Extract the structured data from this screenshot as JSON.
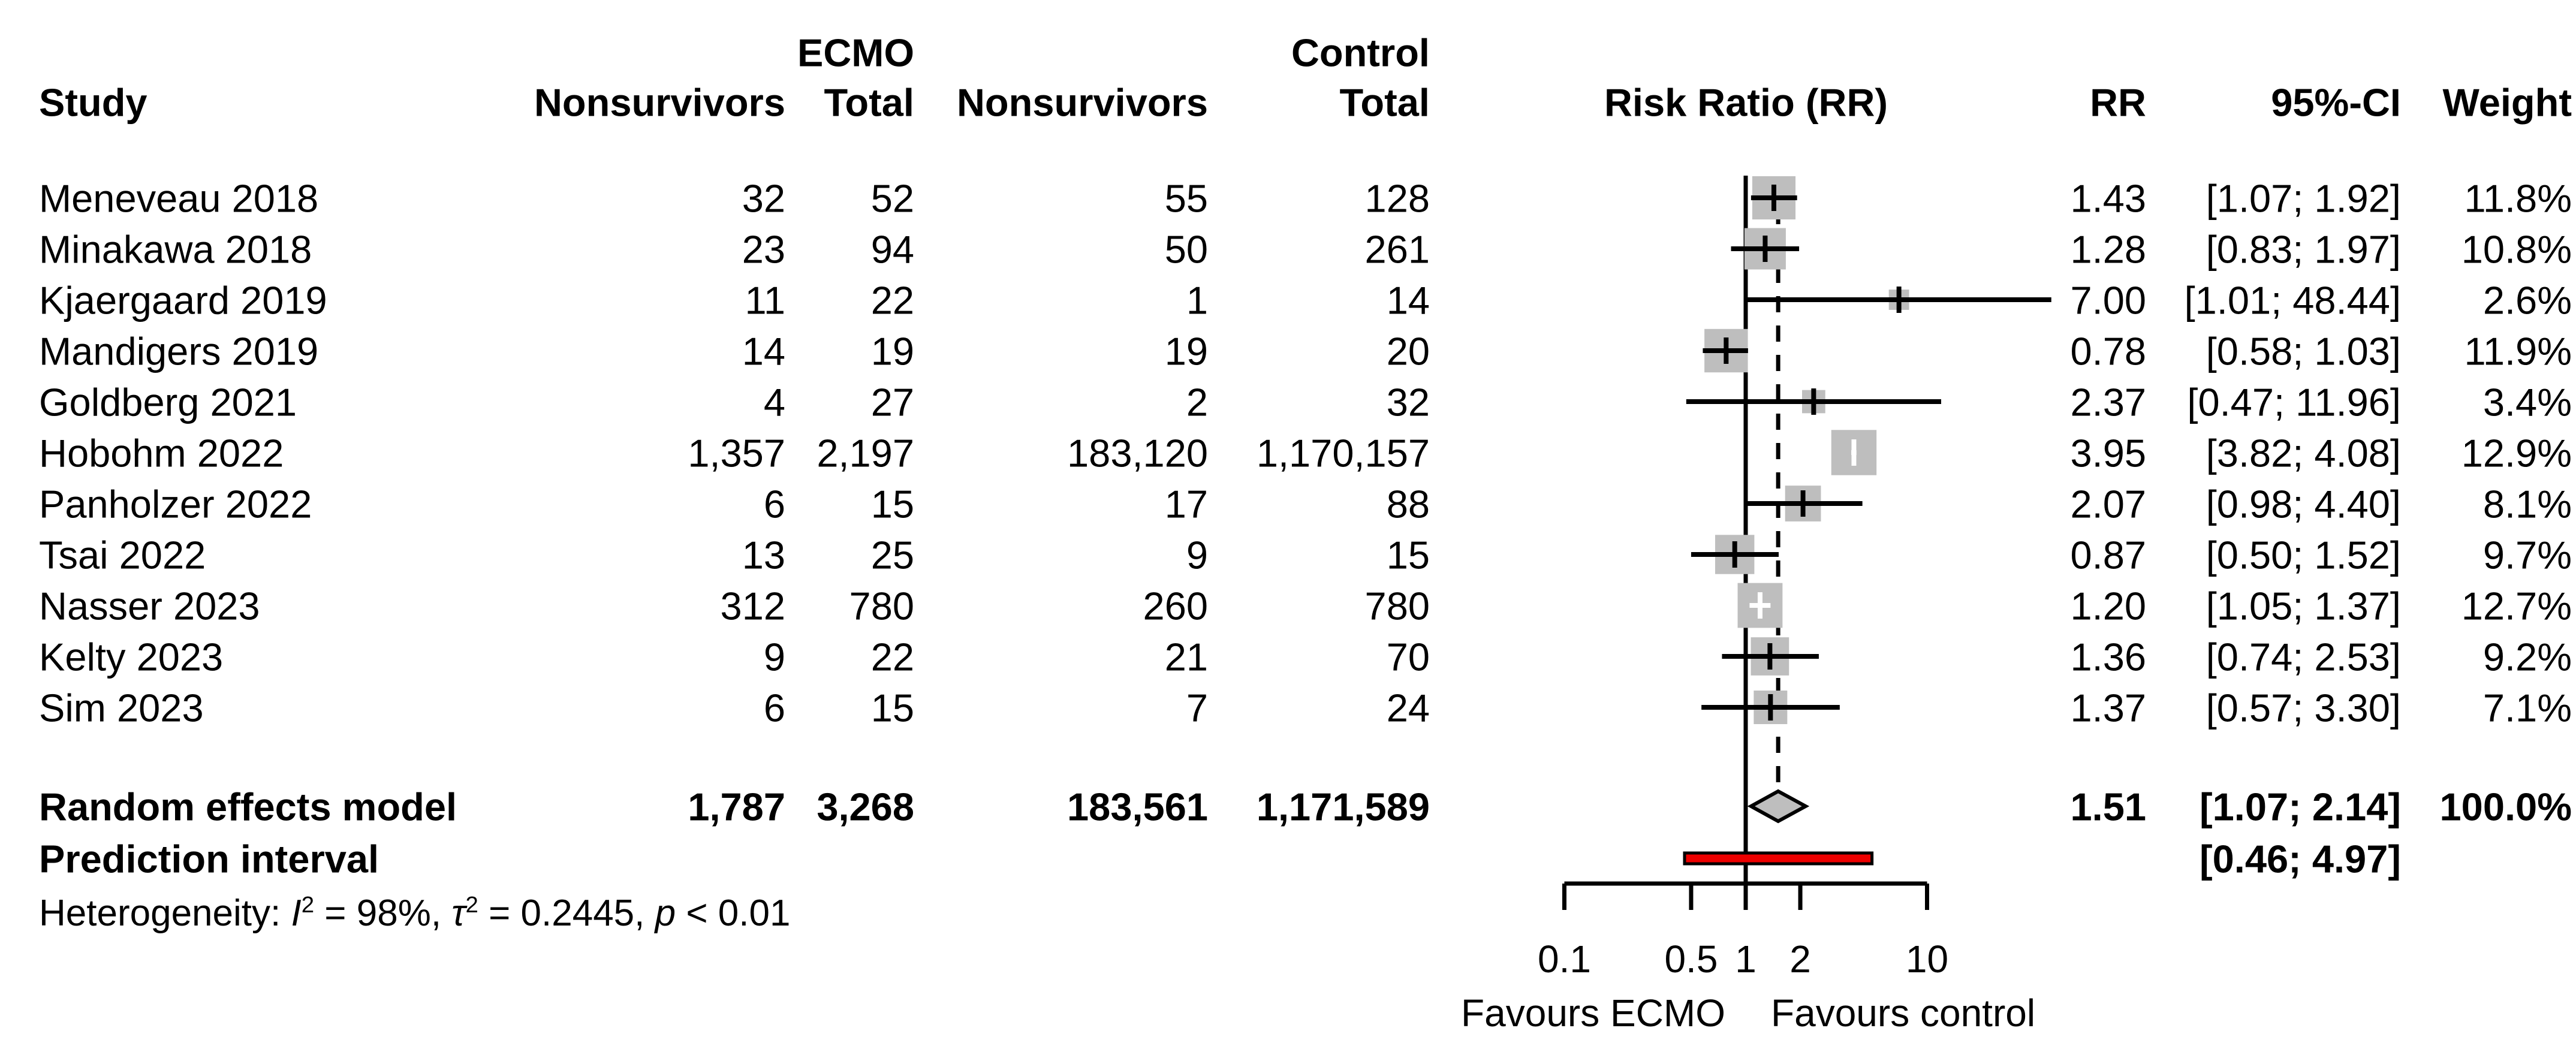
{
  "header": {
    "study": "Study",
    "group_ecmo": "ECMO",
    "group_control": "Control",
    "ecmo_nonsurvivors": "Nonsurvivors",
    "ecmo_total": "Total",
    "control_nonsurvivors": "Nonsurvivors",
    "control_total": "Total",
    "plot": "Risk Ratio (RR)",
    "rr": "RR",
    "ci": "95%-CI",
    "weight": "Weight"
  },
  "chart_data": {
    "type": "forest",
    "x_scale": "log10",
    "axis": {
      "tick_values": [
        0.1,
        0.5,
        1,
        2,
        10
      ],
      "tick_labels": [
        "0.1",
        "0.5",
        "1",
        "2",
        "10"
      ],
      "range": [
        0.1,
        10
      ],
      "reference_value": 1,
      "pooled_value": 1.51,
      "left_label": "Favours ECMO",
      "right_label": "Favours control"
    },
    "studies": [
      {
        "name": "Meneveau 2018",
        "ecmo_nonsurvivors": "32",
        "ecmo_total": "52",
        "control_nonsurvivors": "55",
        "control_total": "128",
        "rr": 1.43,
        "ci_low": 1.07,
        "ci_high": 1.92,
        "weight": 11.8,
        "rr_text": "1.43",
        "ci_text": "[1.07; 1.92]",
        "weight_text": "11.8%"
      },
      {
        "name": "Minakawa 2018",
        "ecmo_nonsurvivors": "23",
        "ecmo_total": "94",
        "control_nonsurvivors": "50",
        "control_total": "261",
        "rr": 1.28,
        "ci_low": 0.83,
        "ci_high": 1.97,
        "weight": 10.8,
        "rr_text": "1.28",
        "ci_text": "[0.83; 1.97]",
        "weight_text": "10.8%"
      },
      {
        "name": "Kjaergaard 2019",
        "ecmo_nonsurvivors": "11",
        "ecmo_total": "22",
        "control_nonsurvivors": "1",
        "control_total": "14",
        "rr": 7.0,
        "ci_low": 1.01,
        "ci_high": 48.44,
        "weight": 2.6,
        "rr_text": "7.00",
        "ci_text": "[1.01; 48.44]",
        "weight_text": "2.6%"
      },
      {
        "name": "Mandigers 2019",
        "ecmo_nonsurvivors": "14",
        "ecmo_total": "19",
        "control_nonsurvivors": "19",
        "control_total": "20",
        "rr": 0.78,
        "ci_low": 0.58,
        "ci_high": 1.03,
        "weight": 11.9,
        "rr_text": "0.78",
        "ci_text": "[0.58; 1.03]",
        "weight_text": "11.9%"
      },
      {
        "name": "Goldberg 2021",
        "ecmo_nonsurvivors": "4",
        "ecmo_total": "27",
        "control_nonsurvivors": "2",
        "control_total": "32",
        "rr": 2.37,
        "ci_low": 0.47,
        "ci_high": 11.96,
        "weight": 3.4,
        "rr_text": "2.37",
        "ci_text": "[0.47; 11.96]",
        "weight_text": "3.4%"
      },
      {
        "name": "Hobohm 2022",
        "ecmo_nonsurvivors": "1,357",
        "ecmo_total": "2,197",
        "control_nonsurvivors": "183,120",
        "control_total": "1,170,157",
        "rr": 3.95,
        "ci_low": 3.82,
        "ci_high": 4.08,
        "weight": 12.9,
        "rr_text": "3.95",
        "ci_text": "[3.82; 4.08]",
        "weight_text": "12.9%"
      },
      {
        "name": "Panholzer 2022",
        "ecmo_nonsurvivors": "6",
        "ecmo_total": "15",
        "control_nonsurvivors": "17",
        "control_total": "88",
        "rr": 2.07,
        "ci_low": 0.98,
        "ci_high": 4.4,
        "weight": 8.1,
        "rr_text": "2.07",
        "ci_text": "[0.98; 4.40]",
        "weight_text": "8.1%"
      },
      {
        "name": "Tsai 2022",
        "ecmo_nonsurvivors": "13",
        "ecmo_total": "25",
        "control_nonsurvivors": "9",
        "control_total": "15",
        "rr": 0.87,
        "ci_low": 0.5,
        "ci_high": 1.52,
        "weight": 9.7,
        "rr_text": "0.87",
        "ci_text": "[0.50; 1.52]",
        "weight_text": "9.7%"
      },
      {
        "name": "Nasser 2023",
        "ecmo_nonsurvivors": "312",
        "ecmo_total": "780",
        "control_nonsurvivors": "260",
        "control_total": "780",
        "rr": 1.2,
        "ci_low": 1.05,
        "ci_high": 1.37,
        "weight": 12.7,
        "rr_text": "1.20",
        "ci_text": "[1.05; 1.37]",
        "weight_text": "12.7%"
      },
      {
        "name": "Kelty 2023",
        "ecmo_nonsurvivors": "9",
        "ecmo_total": "22",
        "control_nonsurvivors": "21",
        "control_total": "70",
        "rr": 1.36,
        "ci_low": 0.74,
        "ci_high": 2.53,
        "weight": 9.2,
        "rr_text": "1.36",
        "ci_text": "[0.74; 2.53]",
        "weight_text": "9.2%"
      },
      {
        "name": "Sim 2023",
        "ecmo_nonsurvivors": "6",
        "ecmo_total": "15",
        "control_nonsurvivors": "7",
        "control_total": "24",
        "rr": 1.37,
        "ci_low": 0.57,
        "ci_high": 3.3,
        "weight": 7.1,
        "rr_text": "1.37",
        "ci_text": "[0.57; 3.30]",
        "weight_text": "7.1%"
      }
    ],
    "summary": {
      "label": "Random effects model",
      "ecmo_nonsurvivors": "1,787",
      "ecmo_total": "3,268",
      "control_nonsurvivors": "183,561",
      "control_total": "1,171,589",
      "rr": 1.51,
      "ci_low": 1.07,
      "ci_high": 2.14,
      "rr_text": "1.51",
      "ci_text": "[1.07; 2.14]",
      "weight_text": "100.0%"
    },
    "prediction": {
      "label": "Prediction interval",
      "ci_low": 0.46,
      "ci_high": 4.97,
      "ci_text": "[0.46; 4.97]"
    },
    "heterogeneity": {
      "prefix": "Heterogeneity: ",
      "i_label": "I",
      "i_sup": "2",
      "i_val": " = 98%, ",
      "tau_label": "τ",
      "tau_sup": "2",
      "tau_val": " = 0.2445, ",
      "p_label": "p",
      "p_val": " < 0.01"
    },
    "colors": {
      "square": "#BEBEBE",
      "diamond_fill": "#BEBEBE",
      "prediction_bar": "#EE0000",
      "line": "#000000"
    }
  }
}
